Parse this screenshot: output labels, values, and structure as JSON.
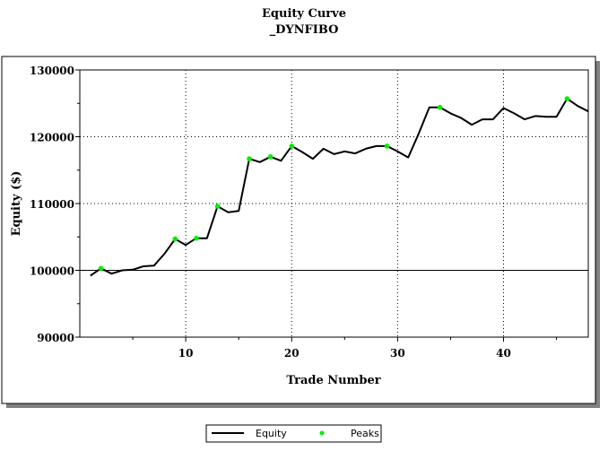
{
  "chart_data": {
    "type": "line",
    "title": "Equity Curve",
    "subtitle": "_DYNFIBO",
    "xlabel": "Trade Number",
    "ylabel": "Equity ($)",
    "xlim": [
      0,
      48
    ],
    "ylim": [
      90000,
      130000
    ],
    "x_ticks": [
      10,
      20,
      30,
      40
    ],
    "y_ticks": [
      90000,
      100000,
      110000,
      120000,
      130000
    ],
    "reference_line": 100000,
    "grid": true,
    "legend_position": "bottom-center",
    "series": [
      {
        "name": "Equity",
        "color": "#000000",
        "x": [
          1,
          2,
          3,
          4,
          5,
          6,
          7,
          8,
          9,
          10,
          11,
          12,
          13,
          14,
          15,
          16,
          17,
          18,
          19,
          20,
          21,
          22,
          23,
          24,
          25,
          26,
          27,
          28,
          29,
          30,
          31,
          32,
          33,
          34,
          35,
          36,
          37,
          38,
          39,
          40,
          41,
          42,
          43,
          44,
          45,
          46,
          47,
          48
        ],
        "y": [
          99200,
          100300,
          99500,
          100000,
          100100,
          100600,
          100700,
          102500,
          104700,
          103800,
          104800,
          104800,
          109600,
          108700,
          108900,
          116700,
          116200,
          117000,
          116400,
          118600,
          117700,
          116700,
          118200,
          117400,
          117800,
          117500,
          118200,
          118600,
          118600,
          117800,
          116900,
          120500,
          124400,
          124400,
          123500,
          122800,
          121800,
          122600,
          122600,
          124300,
          123500,
          122600,
          123100,
          123000,
          123000,
          125700,
          124600,
          123800
        ]
      },
      {
        "name": "Peaks",
        "color": "#00ee00",
        "x": [
          2,
          9,
          11,
          13,
          16,
          18,
          20,
          29,
          34,
          46
        ],
        "y": [
          100300,
          104700,
          104800,
          109600,
          116700,
          117000,
          118600,
          118600,
          124400,
          125700
        ]
      }
    ]
  }
}
